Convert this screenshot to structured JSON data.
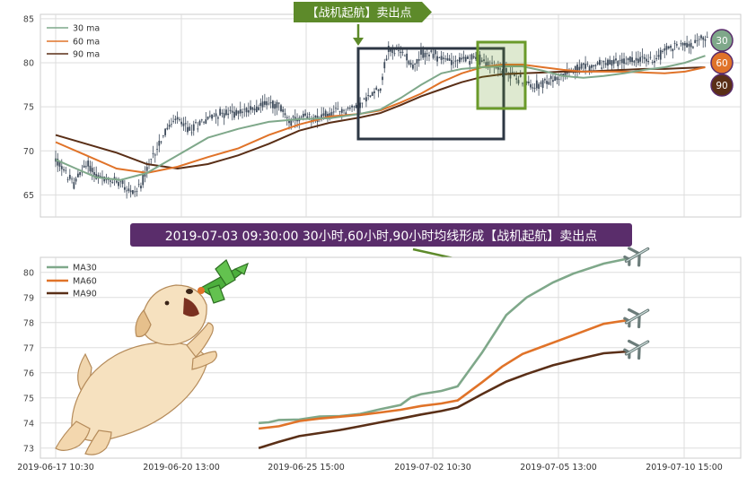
{
  "banner": {
    "top_label": "【战机起航】卖出点",
    "middle_label": "2019-07-03 09:30:00 30小时,60小时,90小时均线形成【战机起航】卖出点"
  },
  "colors": {
    "ma30": "#7fa88a",
    "ma60": "#e07329",
    "ma90": "#5a2f17",
    "candle": "#3e4b5b",
    "banner_green": "#5d8a2a",
    "banner_purple": "#5a2d6b",
    "box_dark": "#2d3744",
    "box_green": "#6a9a2a"
  },
  "chart_data": [
    {
      "type": "candlestick",
      "ylim": [
        62.5,
        85.5
      ],
      "yticks": [
        65,
        70,
        75,
        80,
        85
      ],
      "legend": [
        "30 ma",
        "60 ma",
        "90 ma"
      ],
      "legend_position": "top-left",
      "grid": true,
      "markers": [
        "30",
        "60",
        "90"
      ],
      "ma30": [
        [
          0,
          69
        ],
        [
          10,
          68
        ],
        [
          20,
          67
        ],
        [
          32,
          66.7
        ],
        [
          45,
          67.5
        ],
        [
          60,
          69.5
        ],
        [
          75,
          71.5
        ],
        [
          90,
          72.5
        ],
        [
          105,
          73.3
        ],
        [
          120,
          73.6
        ],
        [
          135,
          73.7
        ],
        [
          150,
          74.2
        ],
        [
          160,
          74.7
        ],
        [
          170,
          76
        ],
        [
          180,
          77.5
        ],
        [
          190,
          78.8
        ],
        [
          200,
          79.3
        ],
        [
          210,
          79.5
        ],
        [
          220,
          79.6
        ],
        [
          230,
          79.6
        ],
        [
          240,
          79.1
        ],
        [
          250,
          78.5
        ],
        [
          260,
          78.3
        ],
        [
          270,
          78.5
        ],
        [
          280,
          78.8
        ],
        [
          290,
          79.2
        ],
        [
          300,
          79.5
        ],
        [
          310,
          80
        ],
        [
          320,
          80.8
        ]
      ],
      "ma60": [
        [
          0,
          71
        ],
        [
          15,
          69.5
        ],
        [
          30,
          68
        ],
        [
          45,
          67.5
        ],
        [
          60,
          68.2
        ],
        [
          75,
          69.3
        ],
        [
          90,
          70.3
        ],
        [
          105,
          71.8
        ],
        [
          120,
          73
        ],
        [
          135,
          73.9
        ],
        [
          150,
          74.2
        ],
        [
          160,
          74.6
        ],
        [
          170,
          75.5
        ],
        [
          180,
          76.5
        ],
        [
          190,
          77.8
        ],
        [
          200,
          78.8
        ],
        [
          210,
          79.5
        ],
        [
          220,
          79.8
        ],
        [
          230,
          79.8
        ],
        [
          240,
          79.5
        ],
        [
          250,
          79.2
        ],
        [
          260,
          79
        ],
        [
          270,
          79
        ],
        [
          280,
          79
        ],
        [
          290,
          78.9
        ],
        [
          300,
          78.8
        ],
        [
          310,
          79
        ],
        [
          320,
          79.5
        ]
      ],
      "ma90": [
        [
          0,
          71.8
        ],
        [
          15,
          70.8
        ],
        [
          30,
          69.8
        ],
        [
          45,
          68.5
        ],
        [
          60,
          68
        ],
        [
          75,
          68.5
        ],
        [
          90,
          69.5
        ],
        [
          105,
          70.8
        ],
        [
          120,
          72.3
        ],
        [
          135,
          73.2
        ],
        [
          150,
          73.8
        ],
        [
          160,
          74.3
        ],
        [
          170,
          75.2
        ],
        [
          180,
          76.2
        ],
        [
          190,
          77
        ],
        [
          200,
          77.8
        ],
        [
          210,
          78.4
        ],
        [
          220,
          78.7
        ],
        [
          230,
          78.8
        ],
        [
          240,
          78.9
        ],
        [
          250,
          79
        ],
        [
          260,
          79
        ],
        [
          270,
          79.1
        ],
        [
          280,
          79.2
        ],
        [
          290,
          79.3
        ],
        [
          300,
          79.3
        ],
        [
          310,
          79.4
        ],
        [
          320,
          79.5
        ]
      ],
      "price_path": [
        [
          0,
          69
        ],
        [
          5,
          67.5
        ],
        [
          9,
          66.2
        ],
        [
          12,
          67.5
        ],
        [
          16,
          68.5
        ],
        [
          20,
          67.2
        ],
        [
          26,
          66.5
        ],
        [
          32,
          66.7
        ],
        [
          37,
          65.3
        ],
        [
          40,
          65.5
        ],
        [
          44,
          67.2
        ],
        [
          48,
          69.5
        ],
        [
          52,
          71.4
        ],
        [
          56,
          72.8
        ],
        [
          60,
          73.6
        ],
        [
          66,
          72.3
        ],
        [
          72,
          73.4
        ],
        [
          80,
          74.2
        ],
        [
          88,
          74.3
        ],
        [
          96,
          74.7
        ],
        [
          104,
          75.5
        ],
        [
          110,
          75.1
        ],
        [
          116,
          73.3
        ],
        [
          122,
          73.7
        ],
        [
          130,
          73.8
        ],
        [
          140,
          74.5
        ],
        [
          145,
          74.8
        ],
        [
          150,
          75.2
        ],
        [
          156,
          76.5
        ],
        [
          160,
          77.4
        ],
        [
          162,
          79.5
        ],
        [
          164,
          81.5
        ],
        [
          168,
          81.2
        ],
        [
          172,
          81.1
        ],
        [
          176,
          79.6
        ],
        [
          181,
          81.1
        ],
        [
          186,
          80.9
        ],
        [
          190,
          80.5
        ],
        [
          196,
          80.2
        ],
        [
          202,
          80.4
        ],
        [
          208,
          80.5
        ],
        [
          214,
          79.8
        ],
        [
          220,
          79.2
        ],
        [
          226,
          78.6
        ],
        [
          232,
          77.5
        ],
        [
          240,
          77.6
        ],
        [
          246,
          78.1
        ],
        [
          252,
          79
        ],
        [
          258,
          79.4
        ],
        [
          264,
          79.6
        ],
        [
          270,
          79.9
        ],
        [
          276,
          80
        ],
        [
          282,
          80.2
        ],
        [
          288,
          80.5
        ],
        [
          294,
          80.2
        ],
        [
          300,
          81.5
        ],
        [
          306,
          82
        ],
        [
          312,
          82.1
        ],
        [
          318,
          82.6
        ],
        [
          322,
          82.8
        ]
      ],
      "candle_count": 322,
      "x_start_index": 0,
      "x_end_index": 322
    },
    {
      "type": "line",
      "ylim": [
        72.6,
        80.6
      ],
      "yticks": [
        73,
        74,
        75,
        76,
        77,
        78,
        79,
        80
      ],
      "xticks": [
        "2019-06-17 10:30",
        "2019-06-20 13:00",
        "2019-06-25 15:00",
        "2019-07-02 10:30",
        "2019-07-05 13:00",
        "2019-07-10 15:00"
      ],
      "xlim": [
        0,
        322
      ],
      "x_range": [
        100,
        322
      ],
      "legend_position": "top-left",
      "grid": true,
      "series": [
        {
          "name": "MA30",
          "points": [
            [
              100,
              74
            ],
            [
              105,
              74.03
            ],
            [
              110,
              74.12
            ],
            [
              120,
              74.14
            ],
            [
              130,
              74.26
            ],
            [
              140,
              74.28
            ],
            [
              150,
              74.36
            ],
            [
              160,
              74.55
            ],
            [
              170,
              74.72
            ],
            [
              175,
              75.02
            ],
            [
              180,
              75.15
            ],
            [
              190,
              75.28
            ],
            [
              198,
              75.46
            ],
            [
              210,
              76.8
            ],
            [
              222,
              78.3
            ],
            [
              232,
              79
            ],
            [
              245,
              79.6
            ],
            [
              255,
              79.95
            ],
            [
              270,
              80.35
            ],
            [
              282,
              80.55
            ]
          ]
        },
        {
          "name": "MA60",
          "points": [
            [
              100,
              73.78
            ],
            [
              110,
              73.87
            ],
            [
              120,
              74.08
            ],
            [
              130,
              74.18
            ],
            [
              140,
              74.25
            ],
            [
              150,
              74.32
            ],
            [
              160,
              74.42
            ],
            [
              170,
              74.53
            ],
            [
              180,
              74.68
            ],
            [
              190,
              74.78
            ],
            [
              198,
              74.9
            ],
            [
              210,
              75.62
            ],
            [
              220,
              76.25
            ],
            [
              230,
              76.75
            ],
            [
              240,
              77.05
            ],
            [
              255,
              77.5
            ],
            [
              270,
              77.95
            ],
            [
              282,
              78.1
            ]
          ]
        },
        {
          "name": "MA90",
          "points": [
            [
              100,
              73
            ],
            [
              110,
              73.25
            ],
            [
              120,
              73.48
            ],
            [
              130,
              73.6
            ],
            [
              140,
              73.72
            ],
            [
              150,
              73.87
            ],
            [
              160,
              74.03
            ],
            [
              170,
              74.18
            ],
            [
              180,
              74.34
            ],
            [
              190,
              74.48
            ],
            [
              198,
              74.62
            ],
            [
              210,
              75.15
            ],
            [
              222,
              75.65
            ],
            [
              232,
              75.95
            ],
            [
              245,
              76.3
            ],
            [
              255,
              76.5
            ],
            [
              270,
              76.78
            ],
            [
              282,
              76.85
            ]
          ]
        }
      ]
    }
  ]
}
